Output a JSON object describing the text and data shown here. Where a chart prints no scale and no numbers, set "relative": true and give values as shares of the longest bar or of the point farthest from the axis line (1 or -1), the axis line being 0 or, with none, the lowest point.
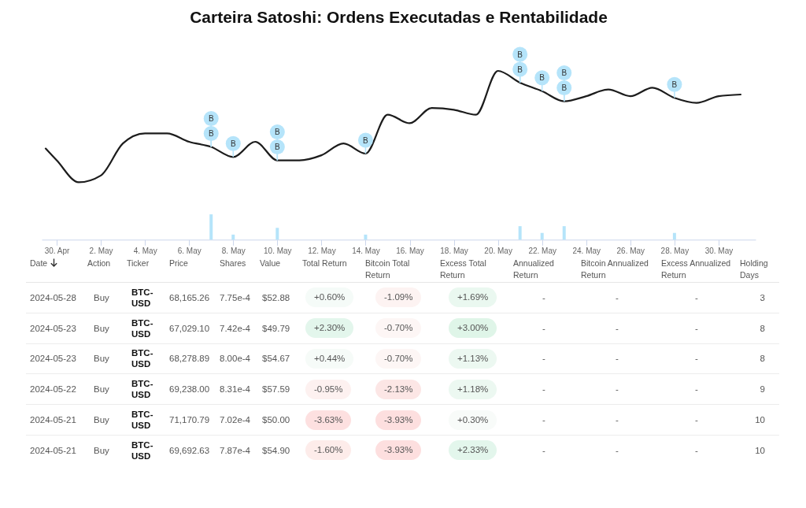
{
  "chart_data": [
    {
      "type": "line",
      "title": "Carteira Satoshi: Ordens Executadas e Rentabilidade",
      "relative": true,
      "xlim": [
        "2024-04-29T12:00",
        "2024-05-31T12:00"
      ],
      "xticks": [
        {
          "value": "2024-04-30",
          "label": "30. Apr"
        },
        {
          "value": "2024-05-02",
          "label": "2. May"
        },
        {
          "value": "2024-05-04",
          "label": "4. May"
        },
        {
          "value": "2024-05-06",
          "label": "6. May"
        },
        {
          "value": "2024-05-08",
          "label": "8. May"
        },
        {
          "value": "2024-05-10",
          "label": "10. May"
        },
        {
          "value": "2024-05-12",
          "label": "12. May"
        },
        {
          "value": "2024-05-14",
          "label": "14. May"
        },
        {
          "value": "2024-05-16",
          "label": "16. May"
        },
        {
          "value": "2024-05-18",
          "label": "18. May"
        },
        {
          "value": "2024-05-20",
          "label": "20. May"
        },
        {
          "value": "2024-05-22",
          "label": "22. May"
        },
        {
          "value": "2024-05-24",
          "label": "24. May"
        },
        {
          "value": "2024-05-26",
          "label": "26. May"
        },
        {
          "value": "2024-05-28",
          "label": "28. May"
        },
        {
          "value": "2024-05-30",
          "label": "30. May"
        }
      ],
      "series": [
        {
          "color": "#1c1c1c",
          "x": [
            "2024-04-29T12:00",
            "2024-04-30",
            "2024-05-01",
            "2024-05-02",
            "2024-05-03",
            "2024-05-04",
            "2024-05-05",
            "2024-05-06",
            "2024-05-07",
            "2024-05-08",
            "2024-05-09",
            "2024-05-10",
            "2024-05-11",
            "2024-05-12",
            "2024-05-13",
            "2024-05-14",
            "2024-05-15",
            "2024-05-16",
            "2024-05-17",
            "2024-05-18",
            "2024-05-19",
            "2024-05-20",
            "2024-05-21",
            "2024-05-22",
            "2024-05-23",
            "2024-05-24",
            "2024-05-25",
            "2024-05-26",
            "2024-05-27",
            "2024-05-28",
            "2024-05-29",
            "2024-05-30",
            "2024-05-31"
          ],
          "values": [
            0.54,
            0.47,
            0.34,
            0.38,
            0.57,
            0.63,
            0.63,
            0.58,
            0.55,
            0.49,
            0.58,
            0.47,
            0.47,
            0.5,
            0.57,
            0.51,
            0.74,
            0.69,
            0.78,
            0.77,
            0.74,
            1,
            0.93,
            0.88,
            0.82,
            0.85,
            0.89,
            0.85,
            0.9,
            0.84,
            0.81,
            0.85,
            0.86
          ]
        },
        {
          "type": "bar",
          "color": "#b5e4fa",
          "x": [
            "2024-05-07",
            "2024-05-08",
            "2024-05-10",
            "2024-05-14",
            "2024-05-21",
            "2024-05-22",
            "2024-05-23",
            "2024-05-28"
          ],
          "values": [
            0.15,
            0.03,
            0.07,
            0.03,
            0.08,
            0.04,
            0.08,
            0.04
          ]
        }
      ],
      "annotations": [
        {
          "text": "B",
          "x": "2024-05-07",
          "y": 0.55
        },
        {
          "text": "B",
          "x": "2024-05-07",
          "y": 0.55
        },
        {
          "text": "B",
          "x": "2024-05-08",
          "y": 0.49
        },
        {
          "text": "B",
          "x": "2024-05-10",
          "y": 0.47
        },
        {
          "text": "B",
          "x": "2024-05-10",
          "y": 0.47
        },
        {
          "text": "B",
          "x": "2024-05-14",
          "y": 0.51
        },
        {
          "text": "B",
          "x": "2024-05-21",
          "y": 0.93
        },
        {
          "text": "B",
          "x": "2024-05-21",
          "y": 0.93
        },
        {
          "text": "B",
          "x": "2024-05-22",
          "y": 0.88
        },
        {
          "text": "B",
          "x": "2024-05-23",
          "y": 0.82
        },
        {
          "text": "B",
          "x": "2024-05-23",
          "y": 0.82
        },
        {
          "text": "B",
          "x": "2024-05-28",
          "y": 0.84
        }
      ]
    },
    {
      "type": "other",
      "categories": [
        "Date",
        "Action",
        "Ticker",
        "Price",
        "Shares",
        "Value",
        "Total Return",
        "Bitcoin Total Return",
        "Excess Total Return",
        "Annualized Return",
        "Bitcoin Annualized Return",
        "Excess Annualized Return",
        "Holding Days"
      ],
      "annotations": [
        "2024-05-28",
        "Buy",
        "BTC-USD",
        "68,165.26",
        "7.75e-4",
        "$52.88",
        "+0.60%",
        "-1.09%",
        "+1.69%",
        "-",
        "-",
        "-",
        "3",
        "2024-05-23",
        "Buy",
        "BTC-USD",
        "67,029.10",
        "7.42e-4",
        "$49.79",
        "+2.30%",
        "-0.70%",
        "+3.00%",
        "-",
        "-",
        "-",
        "8",
        "2024-05-23",
        "Buy",
        "BTC-USD",
        "68,278.89",
        "8.00e-4",
        "$54.67",
        "+0.44%",
        "-0.70%",
        "+1.13%",
        "-",
        "-",
        "-",
        "8",
        "2024-05-22",
        "Buy",
        "BTC-USD",
        "69,238.00",
        "8.31e-4",
        "$57.59",
        "-0.95%",
        "-2.13%",
        "+1.18%",
        "-",
        "-",
        "-",
        "9",
        "2024-05-21",
        "Buy",
        "BTC-USD",
        "71,170.79",
        "7.02e-4",
        "$50.00",
        "-3.63%",
        "-3.93%",
        "+0.30%",
        "-",
        "-",
        "-",
        "10",
        "2024-05-21",
        "Buy",
        "BTC-USD",
        "69,692.63",
        "7.87e-4",
        "$54.90",
        "-1.60%",
        "-3.93%",
        "+2.33%",
        "-",
        "-",
        "-",
        "10"
      ],
      "colors": [
        null,
        null,
        null,
        null,
        null,
        null,
        "#f5fbf8",
        "#fdf3f2",
        "#eaf8f0",
        null,
        null,
        null,
        null,
        null,
        null,
        null,
        null,
        null,
        null,
        "#e3f6ec",
        "#fdf6f5",
        "#dff5e8",
        null,
        null,
        null,
        null,
        null,
        null,
        null,
        null,
        null,
        null,
        "#f6fbf8",
        "#fdf6f5",
        "#ecf8f1",
        null,
        null,
        null,
        null,
        null,
        null,
        null,
        null,
        null,
        null,
        "#fdf1f0",
        "#fce6e5",
        "#ecf8f1",
        null,
        null,
        null,
        null,
        null,
        null,
        null,
        null,
        null,
        null,
        "#fde0e0",
        "#fddfdf",
        "#f8fbf9",
        null,
        null,
        null,
        null,
        null,
        null,
        null,
        null,
        null,
        null,
        "#fdecea",
        "#fddfdf",
        "#e3f6ec",
        null,
        null,
        null,
        null
      ]
    }
  ]
}
